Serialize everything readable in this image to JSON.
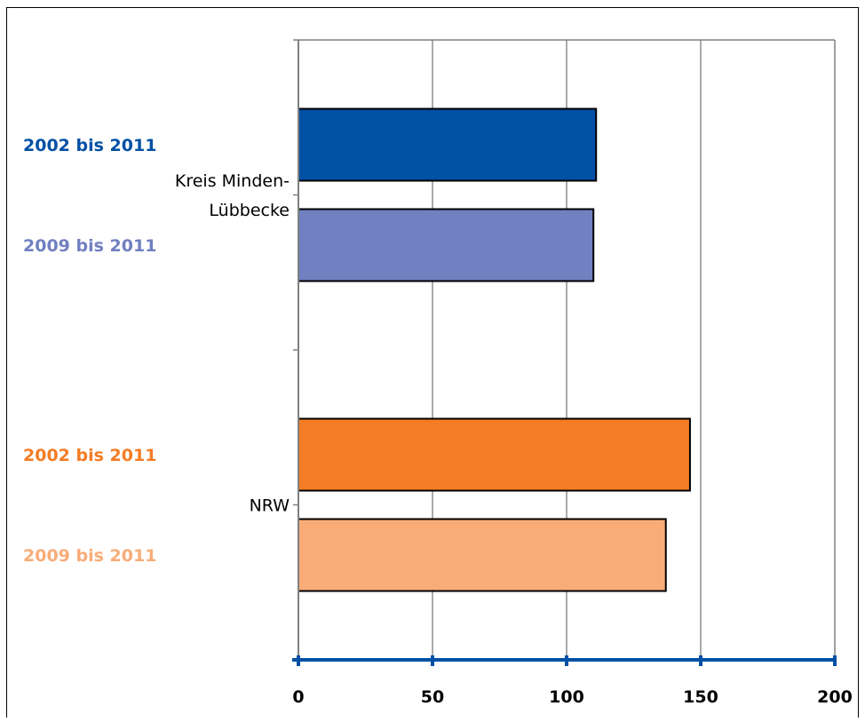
{
  "chart_data": {
    "type": "bar",
    "orientation": "horizontal",
    "categories": [
      "Kreis Minden-Lübbecke",
      "NRW"
    ],
    "category_lines": [
      [
        "Kreis Minden-",
        "Lübbecke"
      ],
      [
        "NRW"
      ]
    ],
    "bars": [
      {
        "category": "Kreis Minden-Lübbecke",
        "label": "2002 bis 2011",
        "value": 111,
        "color": "#0050A5"
      },
      {
        "category": "Kreis Minden-Lübbecke",
        "label": "2009 bis 2011",
        "value": 110,
        "color": "#7080C0"
      },
      {
        "category": "NRW",
        "label": "2002 bis 2011",
        "value": 146,
        "color": "#F47C24"
      },
      {
        "category": "NRW",
        "label": "2009 bis 2011",
        "value": 137,
        "color": "#F9AC78"
      }
    ],
    "xlim": [
      0,
      200
    ],
    "x_ticks": [
      0,
      50,
      100,
      150,
      200
    ],
    "x_axis_color": "#0050A5",
    "grid": true,
    "title": "",
    "xlabel": "",
    "ylabel": ""
  }
}
